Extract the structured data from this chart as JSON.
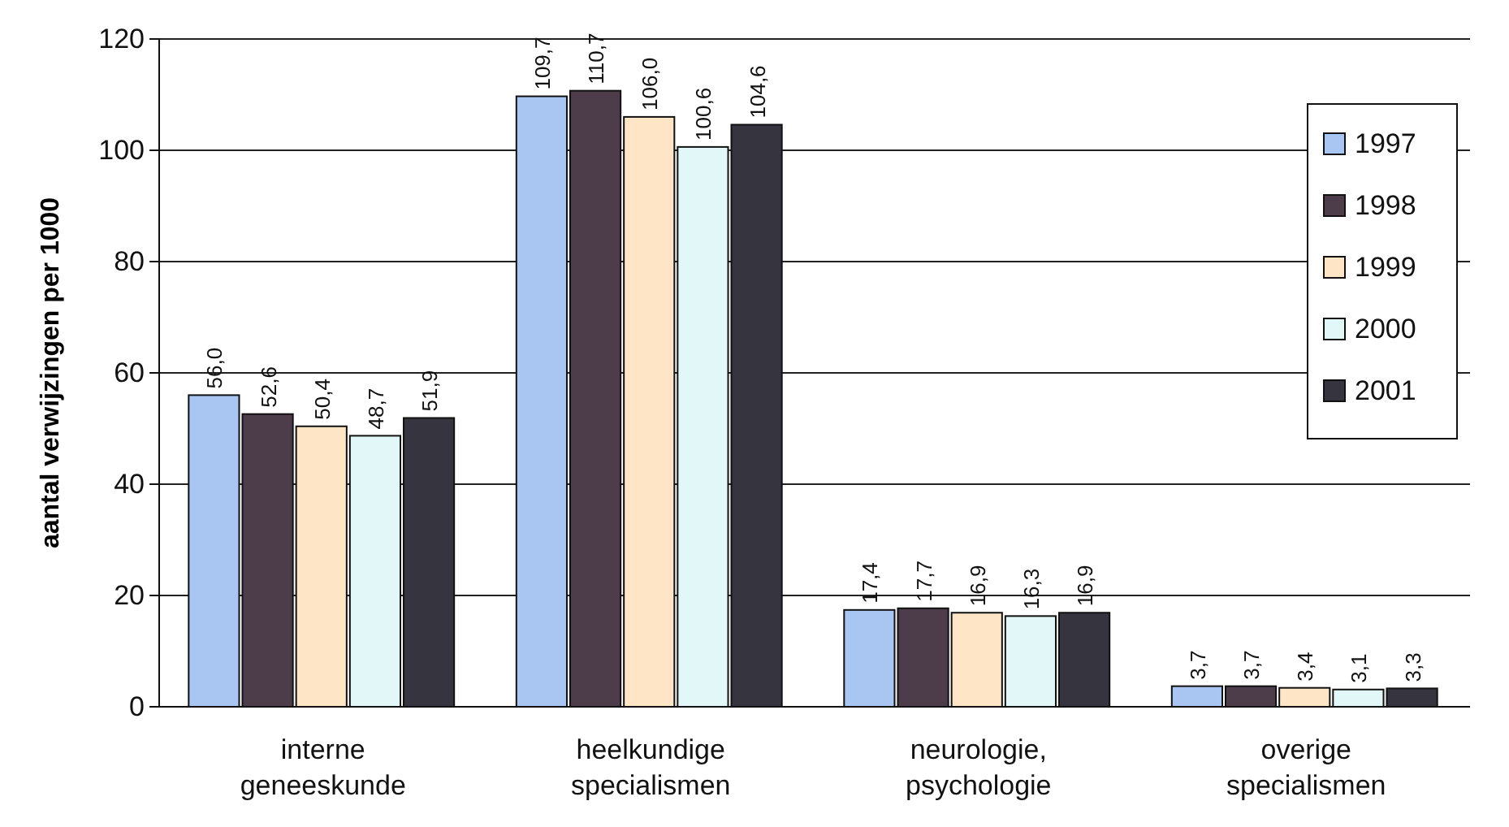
{
  "chart_data": {
    "type": "bar",
    "ylabel": "aantal verwijzingen per 1000",
    "categories": [
      "interne geneeskunde",
      "heelkundige specialismen",
      "neurologie, psychologie",
      "overige specialismen"
    ],
    "series": [
      {
        "name": "1997",
        "color": "#a9c6f2",
        "values": [
          56.0,
          109.7,
          17.4,
          3.7
        ],
        "value_labels": [
          "56,0",
          "109,7",
          "17,4",
          "3,7"
        ]
      },
      {
        "name": "1998",
        "color": "#4d3d4b",
        "values": [
          52.6,
          110.7,
          17.7,
          3.7
        ],
        "value_labels": [
          "52,6",
          "110,7",
          "17,7",
          "3,7"
        ]
      },
      {
        "name": "1999",
        "color": "#fde5c6",
        "values": [
          50.4,
          106.0,
          16.9,
          3.4
        ],
        "value_labels": [
          "50,4",
          "106,0",
          "16,9",
          "3,4"
        ]
      },
      {
        "name": "2000",
        "color": "#e2f8f8",
        "values": [
          48.7,
          100.6,
          16.3,
          3.1
        ],
        "value_labels": [
          "48,7",
          "100,6",
          "16,3",
          "3,1"
        ]
      },
      {
        "name": "2001",
        "color": "#35343f",
        "values": [
          51.9,
          104.6,
          16.9,
          3.3
        ],
        "value_labels": [
          "51,9",
          "104,6",
          "16,9",
          "3,3"
        ]
      }
    ],
    "ylim": [
      0,
      120
    ],
    "yticks": [
      0,
      20,
      40,
      60,
      80,
      100,
      120
    ],
    "grid": "y",
    "legend": "top right"
  }
}
